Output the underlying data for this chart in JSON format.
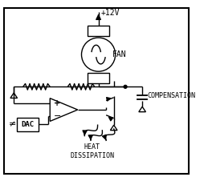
{
  "bg_color": "#ffffff",
  "line_color": "#000000",
  "figsize": [
    2.55,
    2.31
  ],
  "dpi": 100,
  "labels": {
    "plus12v": "+12V",
    "fan": "FAN",
    "compensation": "COMPENSATION",
    "heat": "HEAT\nDISSIPATION",
    "dac": "DAC",
    "not_equal": "≠"
  },
  "border": [
    5,
    5,
    245,
    221
  ]
}
